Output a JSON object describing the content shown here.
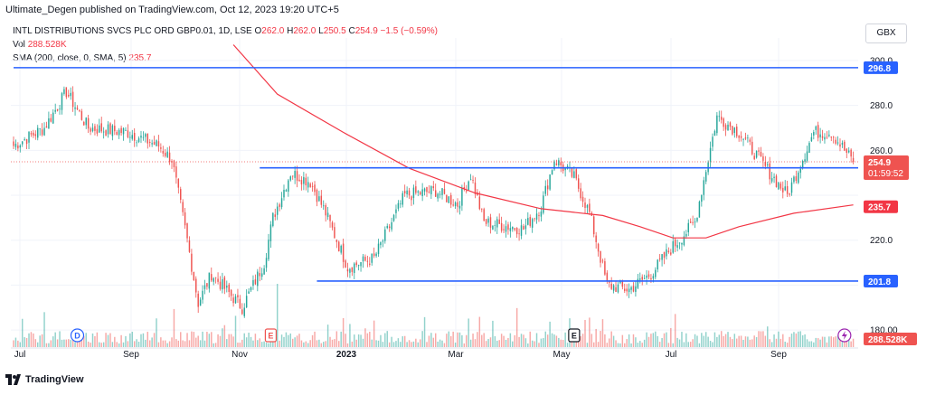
{
  "header": {
    "published": "Ultimate_Degen published on TradingView.com, Oct 12, 2023 19:20 UTC+5",
    "symbol": "INTL DISTRIBUTIONS SVCS PLC ORD GBP0.01, 1D, LSE",
    "ohlc": {
      "o_label": "O",
      "o_value": "262.0",
      "h_label": "H",
      "h_value": "262.0",
      "l_label": "L",
      "l_value": "250.5",
      "c_label": "C",
      "c_value": "254.9",
      "change": "−1.5 (−0.59%)"
    },
    "vol_label": "Vol",
    "vol_value": "288.528K",
    "sma_label": "SMA (200, close, 0, SMA, 5)",
    "sma_value": "235.7",
    "currency": "GBX"
  },
  "brand": {
    "name": "TradingView",
    "icon": "tradingview-logo-icon"
  },
  "colors": {
    "up": "#26a69a",
    "down": "#ef5350",
    "hline": "#2962ff",
    "sma": "#f23645",
    "grid": "#f0f3fa"
  },
  "chart_data": {
    "type": "candlestick",
    "title": "INTL DISTRIBUTIONS SVCS PLC ORD GBP0.01, 1D, LSE",
    "x_ticks": [
      "Jul",
      "Sep",
      "Nov",
      "2023",
      "Mar",
      "May",
      "Jul",
      "Sep"
    ],
    "y_ticks": [
      180.0,
      200.0,
      220.0,
      240.0,
      260.0,
      280.0,
      300.0
    ],
    "y_tick_labels": [
      "180.00",
      "",
      "220.0",
      "",
      "260.0",
      "280.0",
      "300.0"
    ],
    "ylim": [
      172,
      306
    ],
    "price_anchors": [
      {
        "d": 0,
        "p": 262
      },
      {
        "d": 14,
        "p": 270
      },
      {
        "d": 24,
        "p": 286
      },
      {
        "d": 34,
        "p": 270
      },
      {
        "d": 52,
        "p": 268
      },
      {
        "d": 66,
        "p": 262
      },
      {
        "d": 72,
        "p": 256
      },
      {
        "d": 79,
        "p": 220
      },
      {
        "d": 84,
        "p": 192
      },
      {
        "d": 90,
        "p": 205
      },
      {
        "d": 104,
        "p": 190
      },
      {
        "d": 114,
        "p": 210
      },
      {
        "d": 118,
        "p": 230
      },
      {
        "d": 126,
        "p": 250
      },
      {
        "d": 135,
        "p": 246
      },
      {
        "d": 142,
        "p": 232
      },
      {
        "d": 152,
        "p": 208
      },
      {
        "d": 164,
        "p": 212
      },
      {
        "d": 178,
        "p": 240
      },
      {
        "d": 192,
        "p": 242
      },
      {
        "d": 202,
        "p": 236
      },
      {
        "d": 208,
        "p": 249
      },
      {
        "d": 214,
        "p": 228
      },
      {
        "d": 232,
        "p": 225
      },
      {
        "d": 240,
        "p": 235
      },
      {
        "d": 246,
        "p": 256
      },
      {
        "d": 255,
        "p": 248
      },
      {
        "d": 262,
        "p": 232
      },
      {
        "d": 270,
        "p": 200
      },
      {
        "d": 280,
        "p": 198
      },
      {
        "d": 290,
        "p": 205
      },
      {
        "d": 298,
        "p": 215
      },
      {
        "d": 310,
        "p": 228
      },
      {
        "d": 320,
        "p": 275
      },
      {
        "d": 330,
        "p": 268
      },
      {
        "d": 344,
        "p": 250
      },
      {
        "d": 352,
        "p": 240
      },
      {
        "d": 364,
        "p": 268
      },
      {
        "d": 372,
        "p": 268
      },
      {
        "d": 382,
        "p": 254.9
      }
    ],
    "sma": {
      "name": "SMA (200, close, 0, SMA, 5)",
      "points": [
        [
          100,
          307
        ],
        [
          120,
          285
        ],
        [
          150,
          268
        ],
        [
          180,
          252
        ],
        [
          210,
          241
        ],
        [
          240,
          234
        ],
        [
          268,
          231
        ],
        [
          285,
          226
        ],
        [
          300,
          221
        ],
        [
          315,
          221
        ],
        [
          330,
          226
        ],
        [
          355,
          232
        ],
        [
          382,
          235.7
        ]
      ]
    },
    "horizontal_lines": [
      {
        "value": 296.8,
        "label": "296.8",
        "from_day": 0
      },
      {
        "value": 252.2,
        "label": "252.2",
        "from_day": 112
      },
      {
        "value": 201.8,
        "label": "201.8",
        "from_day": 138
      }
    ],
    "last_price": {
      "value": 254.9,
      "label": "254.9",
      "countdown": "01:59:52"
    },
    "sma_last": {
      "value": 235.7,
      "label": "235.7"
    },
    "volume_last": {
      "value": 288528,
      "label": "288.528K"
    },
    "event_markers": [
      {
        "day": 29,
        "letter": "D",
        "kind": "dividend"
      },
      {
        "day": 117,
        "letter": "E",
        "kind": "earnings"
      },
      {
        "day": 255,
        "letter": "E",
        "kind": "earnings"
      }
    ],
    "flash_marker": {
      "day": 378,
      "icon": "lightning-icon"
    }
  }
}
